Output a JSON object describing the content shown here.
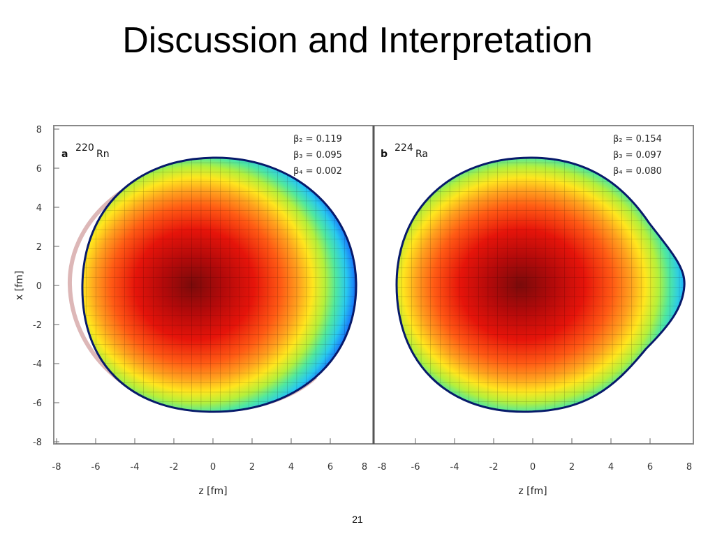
{
  "slide": {
    "title": "Discussion and Interpretation",
    "page_number": "21"
  },
  "figure": {
    "panels": [
      {
        "letter": "a",
        "mass": "220",
        "element": "Rn",
        "params": [
          "β₂ = 0.119",
          "β₃ = 0.095",
          "β₄ = 0.002"
        ],
        "x_ticks": [
          "-8",
          "-6",
          "-4",
          "-2",
          "0",
          "2",
          "4",
          "6",
          "8"
        ],
        "y_ticks": [
          "8",
          "6",
          "4",
          "2",
          "0",
          "-2",
          "-4",
          "-6",
          "-8"
        ],
        "xlabel": "z [fm]",
        "ylabel": "x [fm]"
      },
      {
        "letter": "b",
        "mass": "224",
        "element": "Ra",
        "params": [
          "β₂ = 0.154",
          "β₃ = 0.097",
          "β₄ = 0.080"
        ],
        "x_ticks": [
          "-8",
          "-6",
          "-4",
          "-2",
          "0",
          "2",
          "4",
          "6",
          "8"
        ],
        "xlabel": "z [fm]"
      }
    ],
    "colorscale": [
      "#0a1e8c",
      "#1565ff",
      "#28c8f0",
      "#50e8a0",
      "#b4f03c",
      "#ffe61e",
      "#ffa01e",
      "#ff5a14",
      "#e6140a",
      "#b40a0a",
      "#7a0a0a"
    ]
  }
}
